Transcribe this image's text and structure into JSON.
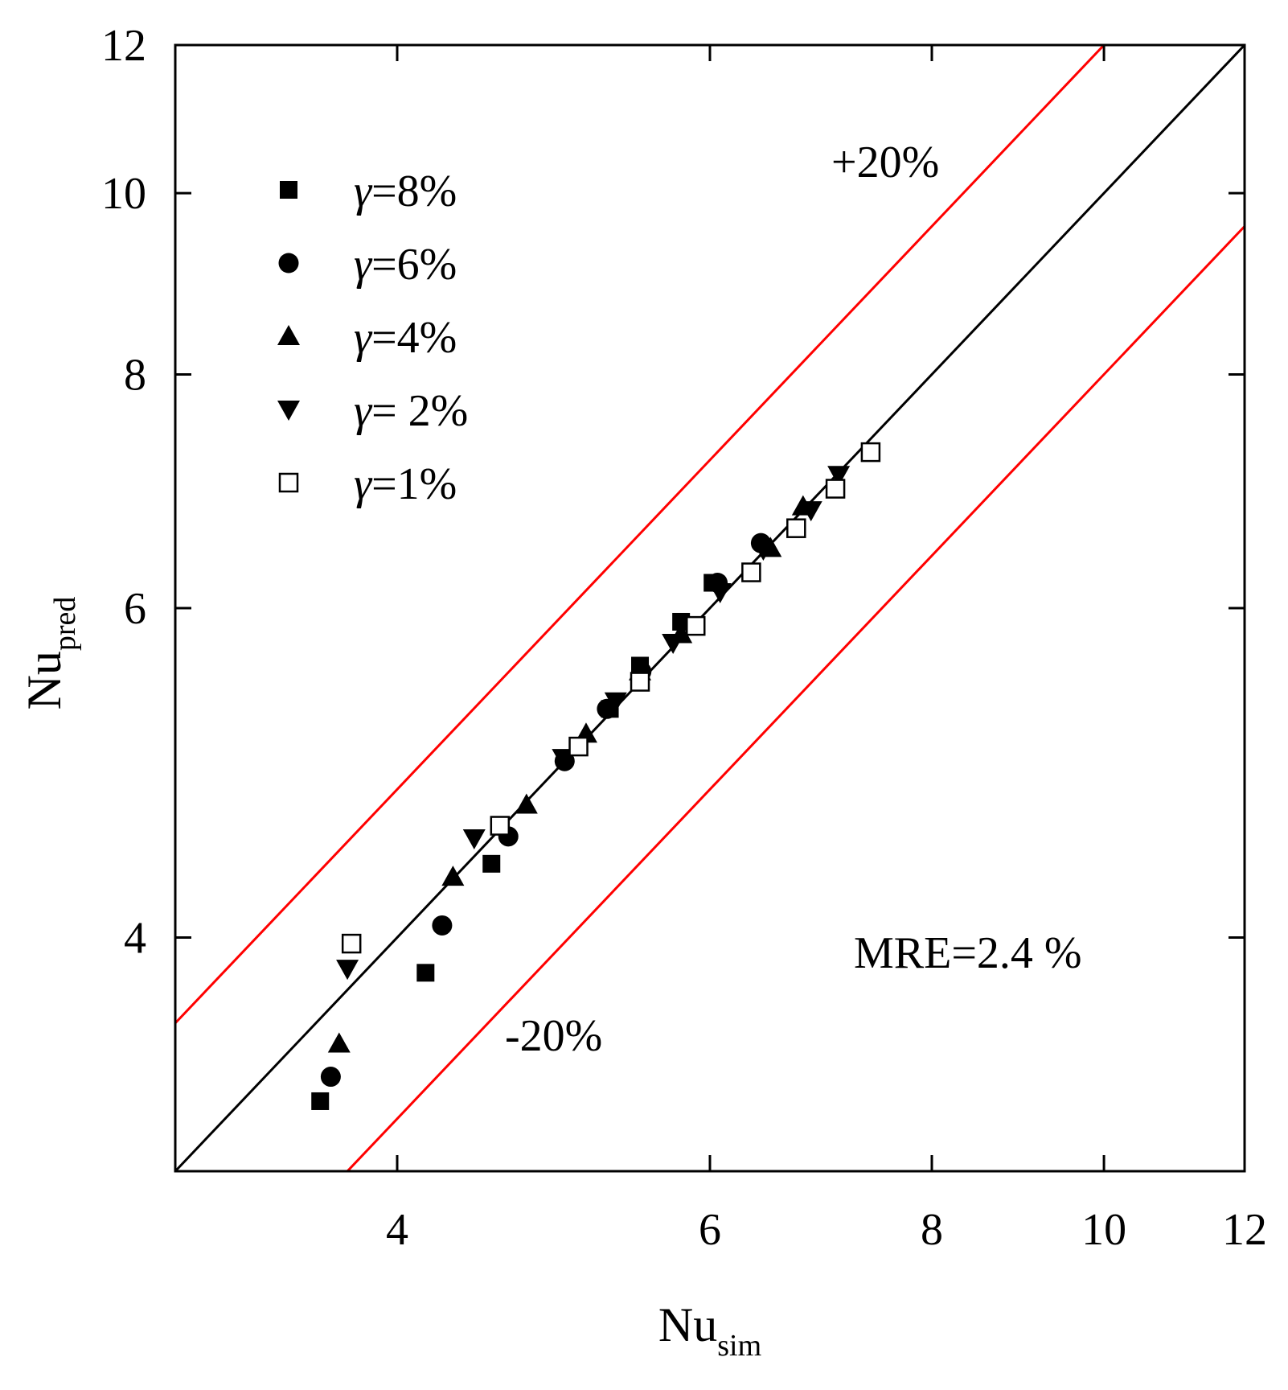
{
  "chart_data": {
    "type": "scatter",
    "x_scale": "log",
    "y_scale": "log",
    "xlim": [
      3.0,
      12.0
    ],
    "ylim": [
      3.0,
      12.0
    ],
    "x_ticks": [
      4,
      6,
      8,
      10,
      12
    ],
    "y_ticks": [
      4,
      6,
      8,
      10,
      12
    ],
    "xlabel": {
      "base": "Nu",
      "sub": "sim"
    },
    "ylabel": {
      "base": "Nu",
      "sub": "pred"
    },
    "reference_lines": [
      {
        "name": "parity",
        "factor": 1.0,
        "color": "#000000"
      },
      {
        "name": "+20%",
        "factor": 1.2,
        "color": "#ff0000",
        "label": "+20%"
      },
      {
        "name": "-20%",
        "factor": 0.8,
        "color": "#ff0000",
        "label": "-20%"
      }
    ],
    "annotation": "MRE=2.4 %",
    "legend_position": "top-left",
    "series": [
      {
        "name": "γ=8%",
        "label_var": "γ",
        "label_rest": "=8%",
        "marker": "square-filled",
        "x": [
          3.62,
          4.15,
          4.52,
          5.27,
          5.48,
          5.78,
          6.02
        ],
        "y": [
          3.27,
          3.83,
          4.38,
          5.3,
          5.59,
          5.9,
          6.19
        ]
      },
      {
        "name": "γ=6%",
        "label_var": "γ",
        "label_rest": "=6%",
        "marker": "circle-filled",
        "x": [
          3.67,
          4.24,
          4.62,
          4.97,
          5.25,
          5.49,
          6.06,
          6.41
        ],
        "y": [
          3.37,
          4.06,
          4.53,
          4.97,
          5.3,
          5.55,
          6.19,
          6.5
        ]
      },
      {
        "name": "γ=4%",
        "label_var": "γ",
        "label_rest": "=4%",
        "marker": "triangle-up-filled",
        "x": [
          3.71,
          4.3,
          4.73,
          5.11,
          5.48,
          5.78,
          6.49,
          6.77
        ],
        "y": [
          3.51,
          4.31,
          4.71,
          5.14,
          5.55,
          5.81,
          6.46,
          6.8
        ]
      },
      {
        "name": "γ= 2%",
        "label_var": "γ",
        "label_rest": "= 2%",
        "marker": "triangle-down-filled",
        "x": [
          3.75,
          4.42,
          4.96,
          5.31,
          5.72,
          6.08,
          6.43,
          6.84,
          7.09
        ],
        "y": [
          3.85,
          4.52,
          4.99,
          5.35,
          5.75,
          6.12,
          6.45,
          6.77,
          7.07
        ]
      },
      {
        "name": "γ=1%",
        "label_var": "γ",
        "label_rest": "=1%",
        "marker": "square-open",
        "x": [
          3.77,
          4.57,
          5.06,
          5.48,
          5.89,
          6.33,
          6.71,
          7.06,
          7.39
        ],
        "y": [
          3.97,
          4.59,
          5.06,
          5.48,
          5.87,
          6.27,
          6.62,
          6.95,
          7.27
        ]
      }
    ]
  }
}
